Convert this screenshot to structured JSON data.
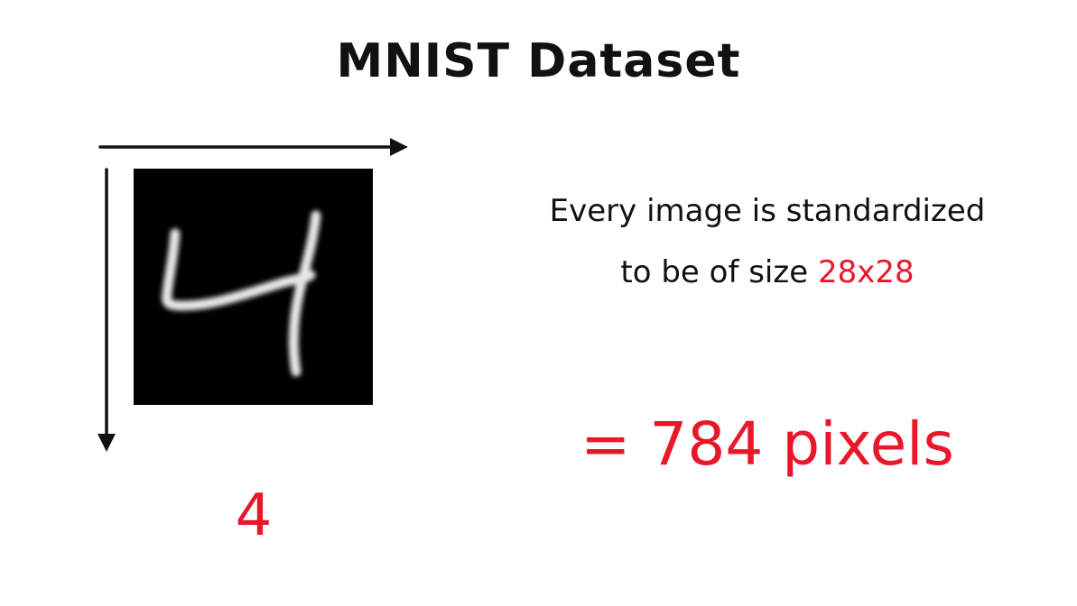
{
  "slide": {
    "title": "MNIST Dataset",
    "digit_label": "4",
    "description_line1": "Every image is standardized",
    "description_line2_prefix": "to be of size ",
    "description_size": "28x28",
    "result": "= 784 pixels"
  },
  "image": {
    "icon": "handwritten-digit-four",
    "background": "#000000",
    "stroke": "#e6e6e6"
  },
  "colors": {
    "accent": "#e8182a",
    "text": "#111111",
    "background": "#ffffff"
  }
}
